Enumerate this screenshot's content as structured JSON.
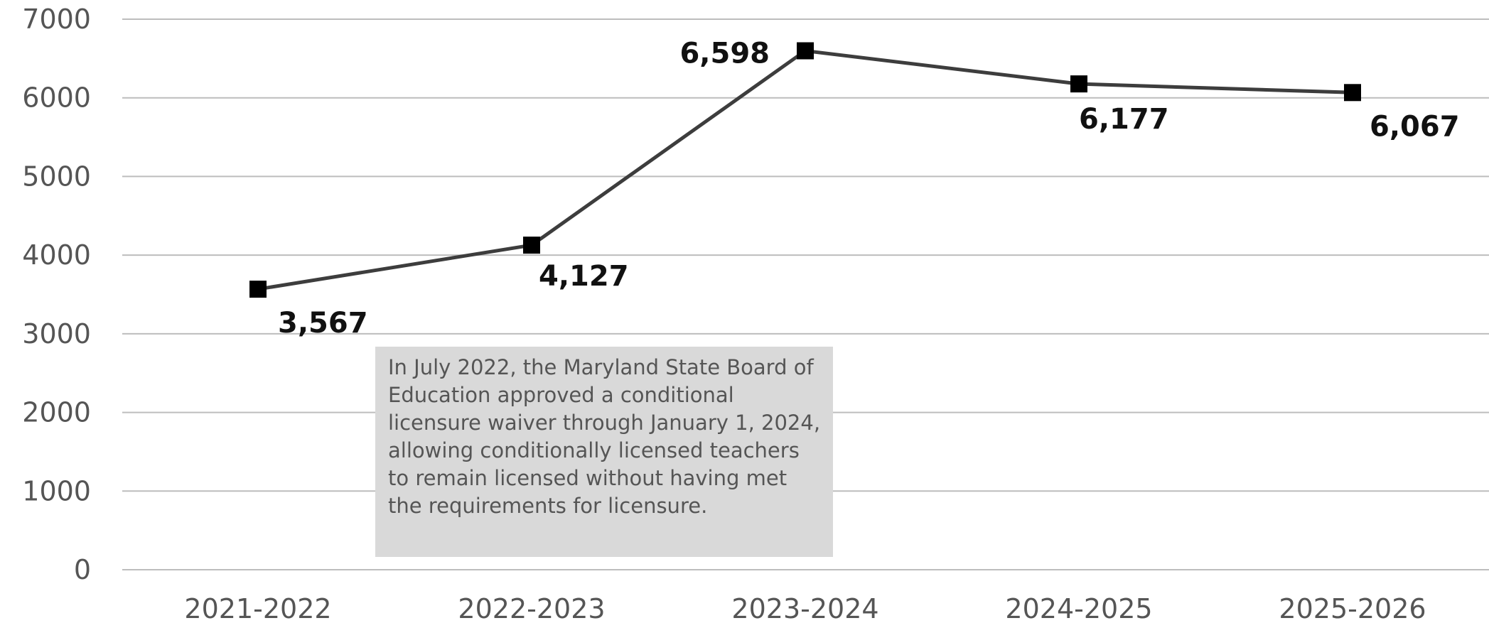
{
  "chart_data": {
    "type": "line",
    "title": "",
    "xlabel": "",
    "ylabel": "",
    "categories": [
      "2021-2022",
      "2022-2023",
      "2023-2024",
      "2024-2025",
      "2025-2026"
    ],
    "series": [
      {
        "values": [
          3567,
          4127,
          6598,
          6177,
          6067
        ],
        "color": "#3d3d3d",
        "marker": "square"
      }
    ],
    "data_labels": [
      "3,567",
      "4,127",
      "6,598",
      "6,177",
      "6,067"
    ],
    "ylim": [
      0,
      7000
    ],
    "yticks": [
      0,
      1000,
      2000,
      3000,
      4000,
      5000,
      6000,
      7000
    ],
    "grid": true,
    "legend": "none",
    "annotation": "In July 2022, the Maryland State Board of Education approved a conditional licensure waiver through January 1, 2024, allowing conditionally licensed teachers to remain licensed without having met the requirements for licensure."
  }
}
